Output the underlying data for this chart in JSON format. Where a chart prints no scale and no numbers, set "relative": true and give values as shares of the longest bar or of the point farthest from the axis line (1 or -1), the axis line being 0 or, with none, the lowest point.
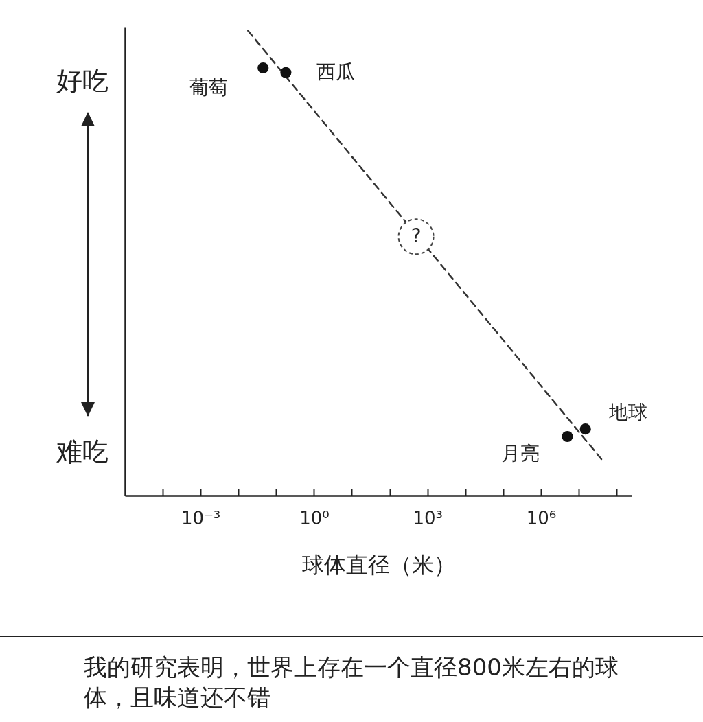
{
  "chart_data": {
    "type": "scatter",
    "xlabel": "球体直径（米）",
    "relative": true,
    "annotations": [
      {
        "text": "?",
        "x": 500,
        "y": 0.557
      },
      "好吃",
      "难吃",
      "我的研究表明，世界上存在一个直径800米左右的球体，且味道还不错"
    ],
    "log": "x",
    "marker": "circle",
    "xlim": [
      1e-05,
      250000000
    ],
    "xticks": [
      {
        "value": 0.0001,
        "label": null
      },
      {
        "value": 0.001,
        "label": "10⁻³"
      },
      {
        "value": 0.01,
        "label": null
      },
      {
        "value": 0.1,
        "label": null
      },
      {
        "value": 1,
        "label": "10⁰"
      },
      {
        "value": 10,
        "label": null
      },
      {
        "value": 100,
        "label": null
      },
      {
        "value": 1000,
        "label": "10³"
      },
      {
        "value": 10000,
        "label": null
      },
      {
        "value": 100000,
        "label": null
      },
      {
        "value": 1000000,
        "label": "10⁶"
      },
      {
        "value": 10000000,
        "label": null
      },
      {
        "value": 100000000,
        "label": null
      }
    ],
    "series": [
      {
        "type": "line",
        "color": "#333333",
        "line_style": "dashed",
        "marker": "none",
        "x": [
          0.018,
          44000000
        ],
        "values": [
          1,
          0.074
        ]
      },
      {
        "name": "葡萄",
        "color": "#111111",
        "x": [
          0.045
        ],
        "values": [
          0.92
        ]
      },
      {
        "name": "西瓜",
        "color": "#111111",
        "x": [
          0.18
        ],
        "values": [
          0.91
        ]
      },
      {
        "name": "月亮",
        "color": "#111111",
        "x": [
          5000000
        ],
        "values": [
          0.127
        ]
      },
      {
        "name": "地球",
        "color": "#111111",
        "x": [
          15000000
        ],
        "values": [
          0.143
        ]
      }
    ]
  }
}
